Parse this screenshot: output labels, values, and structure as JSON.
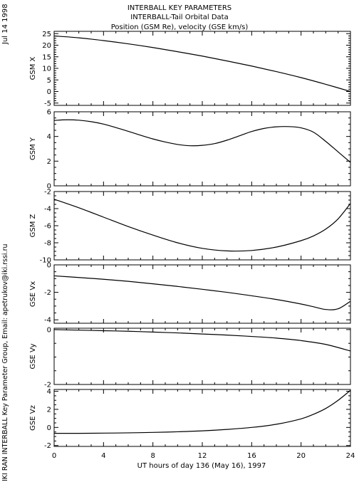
{
  "side_labels": {
    "date": "Jul 14 1998",
    "credit": "IKI RAN INTERBALL Key Parameter Group, Email: apetrukov@iki.rssi.ru"
  },
  "header": {
    "title": "INTERBALL KEY PARAMETERS",
    "subtitle": "INTERBALL-Tail Orbital Data",
    "description": "Position (GSM Re), velocity (GSE km/s)"
  },
  "colors": {
    "background": "#ffffff",
    "line": "#000000"
  },
  "chart_data": [
    {
      "type": "line",
      "ylabel": "GSM X",
      "ylim": [
        -6,
        26
      ],
      "yticks": [
        25,
        20,
        15,
        10,
        5,
        0,
        -5
      ],
      "yminor": [
        24,
        23,
        22,
        21,
        19,
        18,
        17,
        16,
        14,
        13,
        12,
        11,
        9,
        8,
        7,
        6,
        4,
        3,
        2,
        1,
        -1,
        -2,
        -3,
        -4,
        -6
      ],
      "x": [
        0,
        2,
        4,
        6,
        8,
        10,
        12,
        14,
        16,
        18,
        20,
        22,
        24
      ],
      "values": [
        24,
        23.2,
        22,
        20.6,
        19.0,
        17.2,
        15.3,
        13.2,
        11.0,
        8.6,
        6.0,
        3.1,
        0
      ]
    },
    {
      "type": "line",
      "ylabel": "GSM Y",
      "ylim": [
        0,
        6
      ],
      "yticks": [
        6,
        4,
        2,
        0
      ],
      "yminor": [
        5.5,
        5,
        4.5,
        3.5,
        3,
        2.5,
        1.5,
        1,
        0.5
      ],
      "x": [
        0,
        1,
        2,
        3,
        4,
        5,
        6,
        7,
        8,
        9,
        10,
        11,
        12,
        13,
        14,
        15,
        16,
        17,
        18,
        19,
        20,
        21,
        22,
        23,
        24
      ],
      "values": [
        5.3,
        5.35,
        5.32,
        5.2,
        5.0,
        4.72,
        4.42,
        4.1,
        3.8,
        3.55,
        3.35,
        3.25,
        3.28,
        3.42,
        3.7,
        4.05,
        4.4,
        4.65,
        4.78,
        4.8,
        4.7,
        4.35,
        3.6,
        2.75,
        1.9
      ]
    },
    {
      "type": "line",
      "ylabel": "GSM Z",
      "ylim": [
        -10,
        -2
      ],
      "yticks": [
        -2,
        -4,
        -6,
        -8,
        -10
      ],
      "yminor": [
        -2.5,
        -3,
        -3.5,
        -4.5,
        -5,
        -5.5,
        -6.5,
        -7,
        -7.5,
        -8.5,
        -9,
        -9.5
      ],
      "x": [
        0,
        2,
        4,
        6,
        8,
        10,
        12,
        14,
        16,
        18,
        20,
        21,
        22,
        23,
        24
      ],
      "values": [
        -2.9,
        -3.9,
        -5.0,
        -6.1,
        -7.1,
        -8.0,
        -8.65,
        -8.95,
        -8.9,
        -8.5,
        -7.75,
        -7.2,
        -6.4,
        -5.2,
        -3.4
      ]
    },
    {
      "type": "line",
      "ylabel": "GSE Vx",
      "ylim": [
        -4.25,
        0
      ],
      "yticks": [
        0,
        -2,
        -4
      ],
      "yminor": [
        -0.5,
        -1,
        -1.5,
        -2.5,
        -3,
        -3.5
      ],
      "x": [
        0,
        2,
        4,
        6,
        8,
        10,
        12,
        14,
        16,
        18,
        20,
        21,
        22,
        23,
        24
      ],
      "values": [
        -0.8,
        -0.92,
        -1.05,
        -1.2,
        -1.38,
        -1.57,
        -1.78,
        -2.0,
        -2.25,
        -2.52,
        -2.85,
        -3.05,
        -3.25,
        -3.2,
        -2.65
      ]
    },
    {
      "type": "line",
      "ylabel": "GSE Vy",
      "ylim": [
        -2,
        0.05
      ],
      "yticks": [
        0,
        -2
      ],
      "yminor": [
        -0.5,
        -1,
        -1.5
      ],
      "x": [
        0,
        2,
        4,
        6,
        8,
        10,
        12,
        14,
        16,
        18,
        20,
        22,
        24
      ],
      "values": [
        0,
        -0.02,
        -0.04,
        -0.06,
        -0.09,
        -0.12,
        -0.16,
        -0.2,
        -0.25,
        -0.31,
        -0.4,
        -0.54,
        -0.78
      ]
    },
    {
      "type": "line",
      "ylabel": "GSE Vz",
      "ylim": [
        -2.1,
        4.2
      ],
      "yticks": [
        4,
        2,
        0,
        -2
      ],
      "yminor": [
        3.5,
        3,
        2.5,
        1.5,
        1,
        0.5,
        -0.5,
        -1,
        -1.5
      ],
      "x": [
        0,
        2,
        4,
        6,
        8,
        10,
        12,
        14,
        16,
        18,
        20,
        21,
        22,
        23,
        24
      ],
      "values": [
        -0.65,
        -0.65,
        -0.63,
        -0.6,
        -0.55,
        -0.48,
        -0.38,
        -0.22,
        0.0,
        0.35,
        0.95,
        1.45,
        2.1,
        3.0,
        4.1
      ]
    }
  ],
  "x_axis": {
    "label": "UT hours of day 136 (May 16), 1997",
    "ticks": [
      "0",
      "4",
      "8",
      "12",
      "16",
      "20",
      "24"
    ],
    "xlim": [
      0,
      24
    ]
  }
}
